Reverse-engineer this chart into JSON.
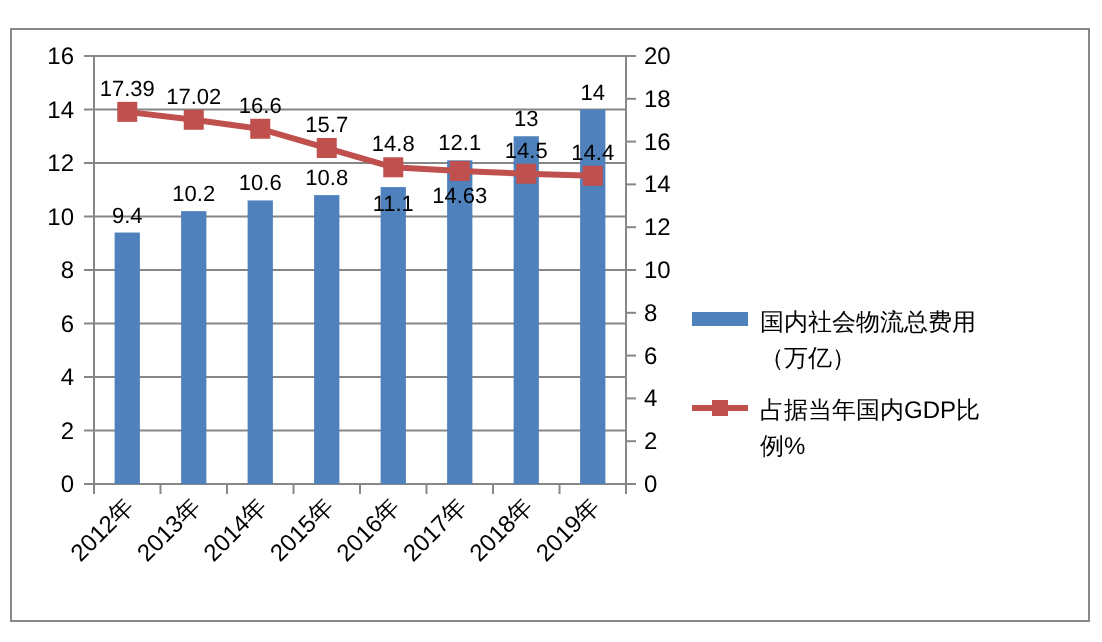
{
  "chart_data": {
    "type": "bar",
    "categories": [
      "2012年",
      "2013年",
      "2014年",
      "2015年",
      "2016年",
      "2017年",
      "2018年",
      "2019年"
    ],
    "series": [
      {
        "name": "国内社会物流总费用（万亿）",
        "color": "#4f81bd",
        "values": [
          9.4,
          10.2,
          10.6,
          10.8,
          11.1,
          12.1,
          13,
          14
        ]
      },
      {
        "name": "占据当年国内GDP比例%",
        "type": "line",
        "axis": "y2",
        "color": "#c0504d",
        "values": [
          17.39,
          17.02,
          16.6,
          15.7,
          14.8,
          14.63,
          14.5,
          14.4
        ]
      }
    ],
    "ylim": [
      0,
      16
    ],
    "yticks": [
      0,
      2,
      4,
      6,
      8,
      10,
      12,
      14,
      16
    ],
    "y2lim": [
      0,
      20
    ],
    "y2ticks": [
      0,
      2,
      4,
      6,
      8,
      10,
      12,
      14,
      16,
      18,
      20
    ],
    "grid": "y",
    "legend": "right",
    "marker": "square",
    "data_labels": true
  }
}
